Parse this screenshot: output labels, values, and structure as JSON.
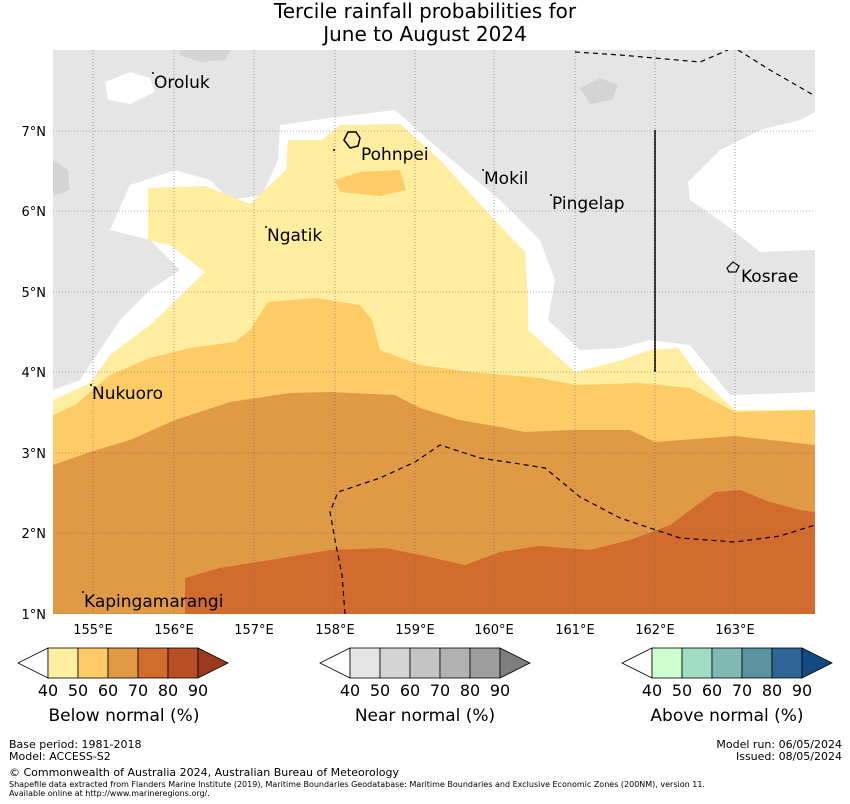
{
  "title": {
    "line1": "Tercile rainfall probabilities for",
    "line2": "June to August 2024"
  },
  "map": {
    "x_axis_labels": [
      "155°E",
      "156°E",
      "157°E",
      "158°E",
      "159°E",
      "160°E",
      "161°E",
      "162°E",
      "163°E"
    ],
    "y_axis_labels": [
      "7°N",
      "6°N",
      "5°N",
      "4°N",
      "3°N",
      "2°N",
      "1°N"
    ],
    "islands": [
      "Oroluk",
      "Pohnpei",
      "Mokil",
      "Pingelap",
      "Ngatik",
      "Kosrae",
      "Nukuoro",
      "Kapingamarangi"
    ]
  },
  "legends": [
    {
      "name": "Below normal (%)",
      "ticks": [
        "40",
        "50",
        "60",
        "70",
        "80",
        "90"
      ],
      "colors": [
        "#ffffff",
        "#ffeda0",
        "#fecc66",
        "#e09a46",
        "#d16c2e",
        "#b84e24",
        "#9b3a1c"
      ]
    },
    {
      "name": "Near normal (%)",
      "ticks": [
        "40",
        "50",
        "60",
        "70",
        "80",
        "90"
      ],
      "colors": [
        "#ffffff",
        "#e5e5e5",
        "#d4d4d4",
        "#c4c4c4",
        "#b1b1b1",
        "#9d9d9d",
        "#7e7e7e"
      ]
    },
    {
      "name": "Above normal (%)",
      "ticks": [
        "40",
        "50",
        "60",
        "70",
        "80",
        "90"
      ],
      "colors": [
        "#ffffff",
        "#ccffcc",
        "#a0dbc4",
        "#80b8b2",
        "#5b92a0",
        "#2f6596",
        "#124a82"
      ]
    }
  ],
  "footer": {
    "base_period": "Base period: 1981-2018",
    "model": "Model: ACCESS-S2",
    "model_run": "Model run: 06/05/2024",
    "issued": "Issued: 08/05/2024",
    "copyright": "© Commonwealth of Australia 2024, Australian Bureau of Meteorology",
    "shapefile_line1": "Shapefile data extracted from Flanders Marine Institute (2019), Maritime Boundaries Geodatabase: Maritime Boundaries and Exclusive Economic Zones (200NM), version 11.",
    "shapefile_line2": "Available online at http://www.marineregions.org/."
  }
}
